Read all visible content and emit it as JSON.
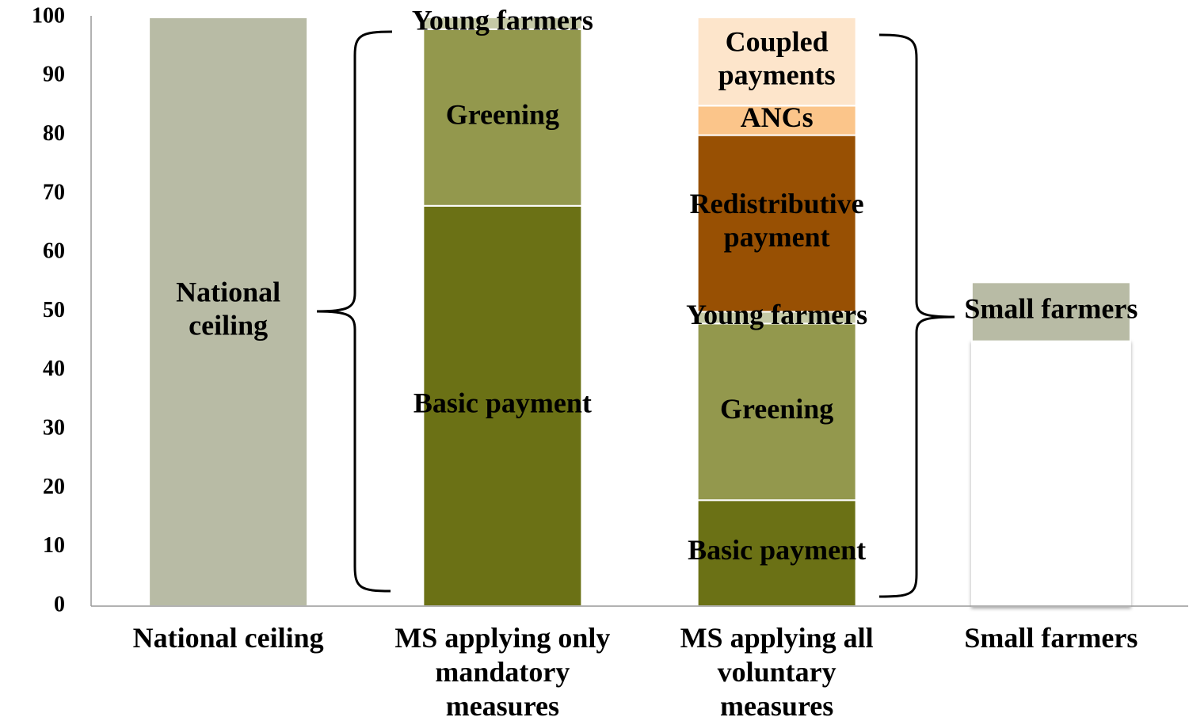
{
  "chart_data": {
    "type": "stacked_bar",
    "categories": [
      "National ceiling",
      "MS applying only\nmandatory\nmeasures",
      "MS applying all\nvoluntary\nmeasures",
      "Small farmers"
    ],
    "series": [
      {
        "name": "National\nceiling",
        "color": "#b8bba5",
        "values": [
          100,
          null,
          null,
          null
        ]
      },
      {
        "name": "Basic payment",
        "color": "#6b7115",
        "values": [
          null,
          68,
          18,
          null
        ]
      },
      {
        "name": "Greening",
        "color": "#93984d",
        "values": [
          null,
          30,
          30,
          null
        ]
      },
      {
        "name": "Young farmers",
        "color": "#c5c9a6",
        "values": [
          null,
          2,
          2,
          null
        ]
      },
      {
        "name": "Redistributive\npayment",
        "color": "#985003",
        "values": [
          null,
          null,
          30,
          null
        ]
      },
      {
        "name": "ANCs",
        "color": "#fbc58a",
        "values": [
          null,
          null,
          5,
          null
        ]
      },
      {
        "name": "Coupled\npayments",
        "color": "#fde5cb",
        "values": [
          null,
          null,
          15,
          null
        ]
      },
      {
        "color": "#ffffff",
        "values": [
          null,
          null,
          null,
          45
        ]
      },
      {
        "name": "Small farmers",
        "color": "#b8bba5",
        "values": [
          null,
          null,
          null,
          10
        ]
      }
    ],
    "ylim": [
      0,
      100
    ],
    "yticks": [
      0,
      10,
      20,
      30,
      40,
      50,
      60,
      70,
      80,
      90,
      100
    ],
    "grid": true
  }
}
